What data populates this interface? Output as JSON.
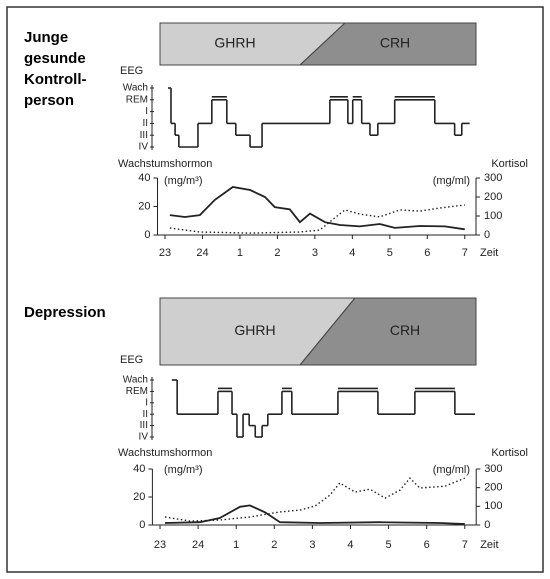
{
  "chart_data": [
    {
      "type": "line",
      "title_lines": [
        "Junge",
        "gesunde",
        "Kontroll-",
        "person"
      ],
      "phases": [
        "GHRH",
        "CRH"
      ],
      "hypnogram": {
        "ylabel": "EEG",
        "ylim": [
          0,
          5
        ],
        "yticks": [
          {
            "value": 5,
            "label": "Wach"
          },
          {
            "value": 4,
            "label": "REM"
          },
          {
            "value": 3,
            "label": "I"
          },
          {
            "value": 2,
            "label": "II"
          },
          {
            "value": 1,
            "label": "III"
          },
          {
            "value": 0,
            "label": "IV"
          }
        ],
        "bins": [
          23.08,
          23.16,
          23.27,
          23.37,
          23.88,
          24.25,
          24.65,
          24.89,
          25.27,
          25.59,
          27.4,
          27.88,
          28.01,
          28.25,
          28.47,
          28.68,
          29.13,
          30.2,
          30.73,
          30.92,
          31.13
        ],
        "values": [
          5,
          2,
          1,
          0,
          2,
          4,
          2,
          1,
          0,
          2,
          4,
          2,
          4,
          2,
          1,
          2,
          4,
          2,
          1,
          2
        ]
      },
      "ylabel": "Wachstumshormon",
      "y_unit": "(mg/m³)",
      "y2label": "Kortisol",
      "y2_unit": "(mg/ml)",
      "xlabel": "Zeit",
      "xlim": [
        22.8,
        31.3
      ],
      "xticks": [
        23,
        24,
        {
          "value": 25,
          "label": "1"
        },
        {
          "value": 26,
          "label": "2"
        },
        {
          "value": 27,
          "label": "3"
        },
        {
          "value": 28,
          "label": "4"
        },
        {
          "value": 29,
          "label": "5"
        },
        {
          "value": 30,
          "label": "6"
        },
        {
          "value": 31,
          "label": "7"
        }
      ],
      "ylim": [
        0,
        40
      ],
      "yticks": [
        0,
        20,
        40
      ],
      "y2lim": [
        0,
        300
      ],
      "y2ticks": [
        0,
        100,
        200,
        300
      ],
      "series": [
        {
          "name": "Wachstumshormon",
          "color": "#222222",
          "style": "solid",
          "x": [
            23.13,
            23.53,
            23.93,
            24.33,
            24.81,
            25.27,
            25.67,
            25.93,
            26.33,
            26.6,
            26.87,
            27.27,
            27.67,
            28.2,
            28.73,
            29.13,
            29.8,
            30.47,
            31
          ],
          "values": [
            14,
            12.6,
            14,
            24.6,
            33.7,
            31.6,
            26.7,
            19.6,
            18,
            9,
            15,
            9,
            7,
            6,
            7.7,
            5,
            6.3,
            6,
            4
          ]
        },
        {
          "name": "Kortisol",
          "color": "#222222",
          "style": "dotted",
          "axis": "y2",
          "x": [
            23.13,
            23.93,
            25.27,
            26.6,
            27.13,
            27.53,
            27.8,
            28.2,
            28.73,
            29.27,
            29.8,
            30.33,
            31
          ],
          "values": [
            37,
            16,
            10,
            16,
            26,
            90,
            132,
            110,
            95,
            132,
            126,
            142,
            158
          ]
        }
      ]
    },
    {
      "type": "line",
      "title_lines": [
        "Depression"
      ],
      "phases": [
        "GHRH",
        "CRH"
      ],
      "hypnogram": {
        "ylabel": "EEG",
        "ylim": [
          0,
          5
        ],
        "yticks": [
          {
            "value": 5,
            "label": "Wach"
          },
          {
            "value": 4,
            "label": "REM"
          },
          {
            "value": 3,
            "label": "I"
          },
          {
            "value": 2,
            "label": "II"
          },
          {
            "value": 1,
            "label": "III"
          },
          {
            "value": 0,
            "label": "IV"
          }
        ],
        "bins": [
          23.31,
          23.45,
          24.52,
          24.89,
          25.02,
          25.18,
          25.34,
          25.5,
          25.68,
          25.83,
          26.2,
          26.46,
          27.67,
          28.72,
          29.69,
          30.74,
          31.27
        ],
        "values": [
          5,
          2,
          4,
          2,
          0,
          2,
          1,
          0,
          1,
          2,
          4,
          2,
          4,
          2,
          4,
          2
        ]
      },
      "ylabel": "Wachstumshormon",
      "y_unit": "(mg/m³)",
      "y2label": "Kortisol",
      "y2_unit": "(mg/ml)",
      "xlabel": "Zeit",
      "xlim": [
        22.8,
        31.3
      ],
      "xticks": [
        23,
        24,
        {
          "value": 25,
          "label": "1"
        },
        {
          "value": 26,
          "label": "2"
        },
        {
          "value": 27,
          "label": "3"
        },
        {
          "value": 28,
          "label": "4"
        },
        {
          "value": 29,
          "label": "5"
        },
        {
          "value": 30,
          "label": "6"
        },
        {
          "value": 31,
          "label": "7"
        }
      ],
      "ylim": [
        0,
        40
      ],
      "yticks": [
        0,
        20,
        40
      ],
      "y2lim": [
        0,
        300
      ],
      "y2ticks": [
        0,
        100,
        200,
        300
      ],
      "series": [
        {
          "name": "Wachstumshormon",
          "color": "#222222",
          "style": "solid",
          "x": [
            23.13,
            24.05,
            24.57,
            25.1,
            25.36,
            25.76,
            26.15,
            27.2,
            28.77,
            30.35,
            31
          ],
          "values": [
            1.4,
            2,
            5,
            13,
            14,
            9,
            2,
            1.4,
            2,
            1.4,
            0.7
          ]
        },
        {
          "name": "Kortisol",
          "color": "#222222",
          "style": "dotted",
          "axis": "y2",
          "x": [
            23.13,
            23.79,
            24.57,
            25.36,
            26.15,
            26.67,
            27.07,
            27.46,
            27.72,
            28.12,
            28.51,
            28.91,
            29.3,
            29.56,
            29.82,
            30.48,
            31
          ],
          "values": [
            43,
            21,
            27,
            43,
            70,
            80,
            102,
            160,
            225,
            176,
            192,
            144,
            187,
            251,
            198,
            208,
            251
          ]
        }
      ]
    }
  ]
}
